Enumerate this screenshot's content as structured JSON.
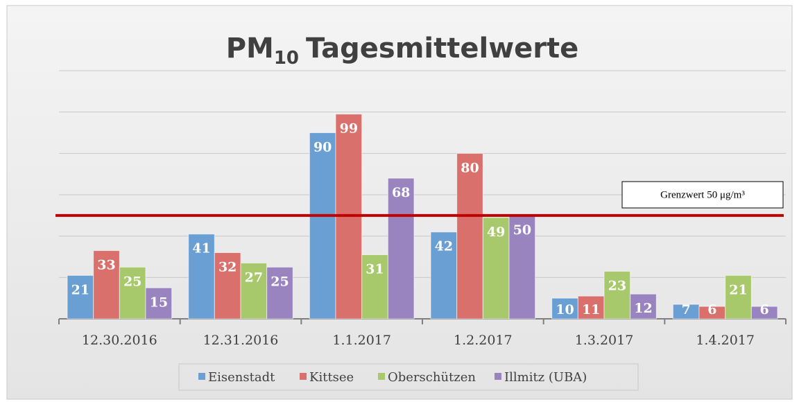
{
  "chart_data": {
    "type": "bar",
    "title": {
      "base": "PM",
      "subscript": "10",
      "rest": "Tagesmittelwerte"
    },
    "categories": [
      "12.30.2016",
      "12.31.2016",
      "1.1.2017",
      "1.2.2017",
      "1.3.2017",
      "1.4.2017"
    ],
    "series": [
      {
        "name": "Eisenstadt",
        "color": "#6a9fd4",
        "values": [
          21,
          41,
          90,
          42,
          10,
          7
        ]
      },
      {
        "name": "Kittsee",
        "color": "#d9706b",
        "values": [
          33,
          32,
          99,
          80,
          11,
          6
        ]
      },
      {
        "name": "Oberschützen",
        "color": "#a8c96b",
        "values": [
          25,
          27,
          31,
          49,
          23,
          21
        ]
      },
      {
        "name": "Illmitz (UBA)",
        "color": "#9a84c0",
        "values": [
          15,
          25,
          68,
          50,
          12,
          6
        ]
      }
    ],
    "ylim": [
      0,
      120
    ],
    "yticks": [
      0,
      20,
      40,
      60,
      80,
      100,
      120
    ],
    "grid": true,
    "y_tick_labels": false,
    "legend": "bottom",
    "threshold": {
      "value": 50,
      "label": "Grenzwert 50 μg/m³",
      "color": "#c00000"
    }
  }
}
